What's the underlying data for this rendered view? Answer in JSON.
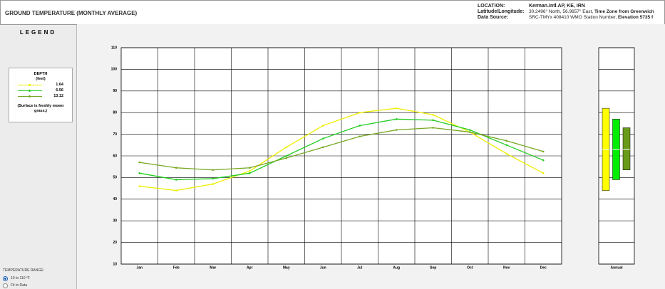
{
  "header": {
    "title": "GROUND TEMPERATURE (MONTHLY AVERAGE)",
    "location_label": "LOCATION:",
    "location": "Kerman.Intl.AP, KE, IRN",
    "latlon_label": "Latitude/Longitude:",
    "latlon": "30.2496° North, 56.9657° East,",
    "timezone": "Time Zone from Greenwich",
    "source_label": "Data Source:",
    "source": "SRC-TMYx    408410 WMO Station Number,",
    "elevation": "Elevation 5735 f"
  },
  "legend": {
    "title": "LEGEND",
    "depth_title": "DEPTH",
    "depth_unit": "(feet)",
    "note": "(Surface is freshly mown grass.)"
  },
  "range_control": {
    "label": "TEMPERATURE RANGE:",
    "options": [
      "10 to 110 °F",
      "Fit to Data"
    ],
    "selected": 0
  },
  "chart_data": {
    "type": "line",
    "categories": [
      "Jan",
      "Feb",
      "Mar",
      "Apr",
      "May",
      "Jun",
      "Jul",
      "Aug",
      "Sep",
      "Oct",
      "Nov",
      "Dec"
    ],
    "series": [
      {
        "name": "1.64",
        "color": "#eeee00",
        "values": [
          46,
          44,
          47,
          53,
          64,
          74,
          80,
          82,
          79,
          71,
          61,
          52
        ]
      },
      {
        "name": "6.56",
        "color": "#22cc22",
        "values": [
          52,
          49,
          49.5,
          52,
          60,
          68,
          74,
          77,
          76.5,
          72,
          65,
          58
        ]
      },
      {
        "name": "13.12",
        "color": "#77a822",
        "values": [
          57,
          54.5,
          53.5,
          54.5,
          59,
          64,
          69,
          72,
          73,
          71,
          67,
          62
        ]
      }
    ],
    "ylim": [
      10,
      110
    ],
    "yticks": [
      10,
      20,
      30,
      40,
      50,
      60,
      70,
      80,
      90,
      100,
      110
    ],
    "grid": true,
    "annual": {
      "label": "Annual",
      "ranges": [
        {
          "low": 44,
          "high": 82,
          "mean": 63,
          "color": "#ffff00"
        },
        {
          "low": 49,
          "high": 77,
          "mean": 63,
          "color": "#00ee00"
        },
        {
          "low": 53.5,
          "high": 73,
          "mean": 63,
          "color": "#6a9a1a"
        }
      ]
    }
  }
}
